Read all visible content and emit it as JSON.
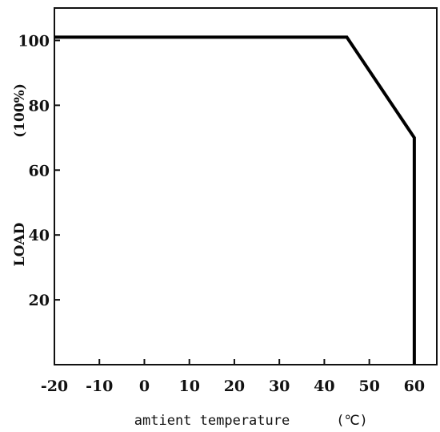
{
  "chart_data": {
    "type": "line",
    "x": [
      -20,
      45,
      60,
      60
    ],
    "y": [
      101,
      101,
      70,
      0
    ],
    "xlim": [
      -20,
      65
    ],
    "ylim": [
      0,
      110
    ],
    "xticks": [
      -20,
      -10,
      0,
      10,
      20,
      30,
      40,
      50,
      60
    ],
    "xtick_labels": [
      "-20",
      "-10",
      "0",
      "10",
      "20",
      "30",
      "40",
      "50",
      "60"
    ],
    "yticks": [
      20,
      40,
      60,
      80,
      100
    ],
    "ytick_labels": [
      "20",
      "40",
      "60",
      "80",
      "100"
    ],
    "xlabel": "amtient temperature",
    "xlabel_unit": "(℃)",
    "ylabel": "LOAD",
    "ylabel_unit": "(100%)",
    "grid": false,
    "line_color": "#000000"
  }
}
